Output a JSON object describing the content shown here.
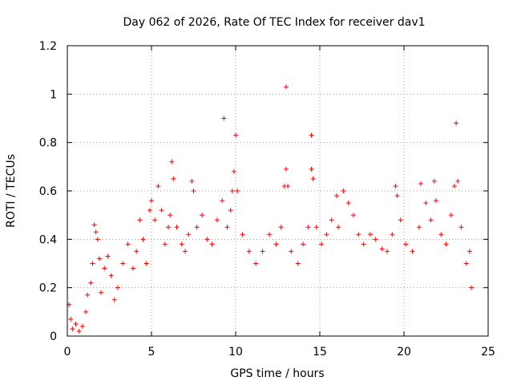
{
  "chart_data": {
    "type": "scatter",
    "title": "Day 062 of 2026, Rate Of TEC Index for receiver dav1",
    "xlabel": "GPS time / hours",
    "ylabel": "ROTI / TECUs",
    "xlim": [
      0,
      25
    ],
    "ylim": [
      0,
      1.2
    ],
    "xticks": [
      0,
      5,
      10,
      15,
      20,
      25
    ],
    "xtick_labels": [
      "0",
      "5",
      "10",
      "15",
      "20",
      "25"
    ],
    "yticks": [
      0,
      0.2,
      0.4,
      0.6,
      0.8,
      1.0,
      1.2
    ],
    "ytick_labels": [
      "0",
      "0.2",
      "0.4",
      "0.6",
      "0.8",
      "1",
      "1.2"
    ],
    "grid": true,
    "marker": "+",
    "color": "#ff0000",
    "series": [
      {
        "name": "ROTI",
        "points": [
          [
            0.1,
            0.13
          ],
          [
            0.2,
            0.07
          ],
          [
            0.3,
            0.03
          ],
          [
            0.5,
            0.05
          ],
          [
            0.7,
            0.02
          ],
          [
            0.9,
            0.04
          ],
          [
            1.1,
            0.1
          ],
          [
            1.2,
            0.17
          ],
          [
            1.4,
            0.22
          ],
          [
            1.5,
            0.3
          ],
          [
            1.6,
            0.46
          ],
          [
            1.7,
            0.43
          ],
          [
            1.8,
            0.4
          ],
          [
            1.9,
            0.32
          ],
          [
            2.0,
            0.18
          ],
          [
            2.2,
            0.28
          ],
          [
            2.4,
            0.33
          ],
          [
            2.6,
            0.25
          ],
          [
            2.8,
            0.15
          ],
          [
            3.0,
            0.2
          ],
          [
            3.3,
            0.3
          ],
          [
            3.6,
            0.38
          ],
          [
            3.9,
            0.28
          ],
          [
            4.1,
            0.35
          ],
          [
            4.3,
            0.48
          ],
          [
            4.5,
            0.4
          ],
          [
            4.7,
            0.3
          ],
          [
            4.9,
            0.52
          ],
          [
            5.0,
            0.56
          ],
          [
            5.2,
            0.48
          ],
          [
            5.4,
            0.62
          ],
          [
            5.6,
            0.52
          ],
          [
            5.8,
            0.38
          ],
          [
            6.0,
            0.45
          ],
          [
            6.1,
            0.5
          ],
          [
            6.2,
            0.72
          ],
          [
            6.3,
            0.65
          ],
          [
            6.5,
            0.45
          ],
          [
            6.8,
            0.38
          ],
          [
            7.0,
            0.35
          ],
          [
            7.2,
            0.42
          ],
          [
            7.4,
            0.64
          ],
          [
            7.5,
            0.6
          ],
          [
            7.7,
            0.45
          ],
          [
            8.0,
            0.5
          ],
          [
            8.3,
            0.4
          ],
          [
            8.6,
            0.38
          ],
          [
            8.9,
            0.48
          ],
          [
            9.2,
            0.56
          ],
          [
            9.3,
            0.9
          ],
          [
            9.5,
            0.45
          ],
          [
            9.7,
            0.52
          ],
          [
            9.8,
            0.6
          ],
          [
            9.9,
            0.68
          ],
          [
            10.0,
            0.83
          ],
          [
            10.1,
            0.6
          ],
          [
            10.4,
            0.42
          ],
          [
            10.8,
            0.35
          ],
          [
            11.2,
            0.3
          ],
          [
            11.6,
            0.35
          ],
          [
            12.0,
            0.42
          ],
          [
            12.4,
            0.38
          ],
          [
            12.7,
            0.45
          ],
          [
            12.9,
            0.62
          ],
          [
            13.0,
            1.03
          ],
          [
            13.0,
            0.69
          ],
          [
            13.1,
            0.62
          ],
          [
            13.3,
            0.35
          ],
          [
            13.7,
            0.3
          ],
          [
            14.0,
            0.38
          ],
          [
            14.3,
            0.45
          ],
          [
            14.5,
            0.83
          ],
          [
            14.5,
            0.69
          ],
          [
            14.6,
            0.65
          ],
          [
            14.8,
            0.45
          ],
          [
            15.1,
            0.38
          ],
          [
            15.4,
            0.42
          ],
          [
            15.7,
            0.48
          ],
          [
            16.0,
            0.58
          ],
          [
            16.1,
            0.45
          ],
          [
            16.4,
            0.6
          ],
          [
            16.7,
            0.55
          ],
          [
            17.0,
            0.5
          ],
          [
            17.3,
            0.42
          ],
          [
            17.6,
            0.38
          ],
          [
            18.0,
            0.42
          ],
          [
            18.3,
            0.4
          ],
          [
            18.7,
            0.36
          ],
          [
            19.0,
            0.35
          ],
          [
            19.3,
            0.42
          ],
          [
            19.5,
            0.62
          ],
          [
            19.6,
            0.58
          ],
          [
            19.8,
            0.48
          ],
          [
            20.1,
            0.38
          ],
          [
            20.5,
            0.35
          ],
          [
            20.9,
            0.45
          ],
          [
            21.0,
            0.63
          ],
          [
            21.3,
            0.55
          ],
          [
            21.6,
            0.48
          ],
          [
            21.8,
            0.64
          ],
          [
            21.9,
            0.56
          ],
          [
            22.2,
            0.42
          ],
          [
            22.5,
            0.38
          ],
          [
            22.8,
            0.5
          ],
          [
            23.0,
            0.62
          ],
          [
            23.1,
            0.88
          ],
          [
            23.2,
            0.64
          ],
          [
            23.4,
            0.45
          ],
          [
            23.7,
            0.3
          ],
          [
            23.9,
            0.35
          ],
          [
            24.0,
            0.2
          ]
        ]
      }
    ]
  }
}
